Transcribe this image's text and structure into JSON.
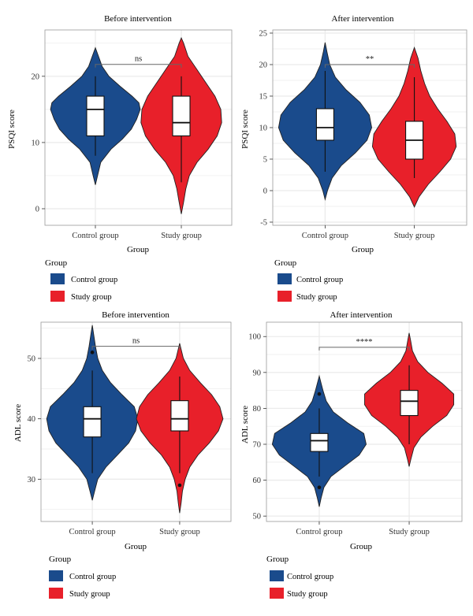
{
  "colors": {
    "control": "#1a4b8c",
    "study": "#e8202a",
    "panel_border": "#9a9a9a",
    "grid": "#ebebeb",
    "outline": "#222222"
  },
  "chart_data": [
    {
      "type": "violin",
      "title": "Before intervention",
      "xlabel": "Group",
      "ylabel": "PSQI score",
      "categories": [
        "Control group",
        "Study group"
      ],
      "ylim": [
        -2.5,
        27
      ],
      "yticks": [
        0,
        10,
        20
      ],
      "significance": "ns",
      "bracket_y": 21.8,
      "legend": {
        "title": "Group",
        "items": [
          "Control group",
          "Study group"
        ]
      },
      "series": [
        {
          "name": "Control group",
          "min": 8,
          "q1": 11,
          "median": 15,
          "q3": 17,
          "max": 20,
          "outliers": [],
          "violin": [
            [
              3.6,
              0
            ],
            [
              5,
              0.05
            ],
            [
              7,
              0.12
            ],
            [
              9,
              0.35
            ],
            [
              10.5,
              0.6
            ],
            [
              12,
              0.8
            ],
            [
              13.5,
              0.92
            ],
            [
              15,
              1.0
            ],
            [
              16,
              0.97
            ],
            [
              17,
              0.82
            ],
            [
              18.5,
              0.55
            ],
            [
              20,
              0.3
            ],
            [
              21.5,
              0.15
            ],
            [
              23,
              0.07
            ],
            [
              24.3,
              0
            ]
          ]
        },
        {
          "name": "Study group",
          "min": 4,
          "q1": 11,
          "median": 13,
          "q3": 17,
          "max": 20,
          "outliers": [],
          "violin": [
            [
              -0.8,
              0
            ],
            [
              1,
              0.05
            ],
            [
              3,
              0.1
            ],
            [
              5,
              0.18
            ],
            [
              7,
              0.35
            ],
            [
              9,
              0.6
            ],
            [
              11,
              0.8
            ],
            [
              13,
              0.9
            ],
            [
              15,
              0.88
            ],
            [
              17,
              0.75
            ],
            [
              19,
              0.55
            ],
            [
              21,
              0.35
            ],
            [
              23,
              0.15
            ],
            [
              25,
              0.05
            ],
            [
              25.8,
              0
            ]
          ]
        }
      ]
    },
    {
      "type": "violin",
      "title": "After intervention",
      "xlabel": "Group",
      "ylabel": "PSQI score",
      "categories": [
        "Control group",
        "Study group"
      ],
      "ylim": [
        -5.5,
        25.5
      ],
      "yticks": [
        -5,
        0,
        5,
        10,
        15,
        20,
        25
      ],
      "significance": "**",
      "bracket_y": 20,
      "legend": {
        "title": "Group",
        "items": [
          "Control group",
          "Study group"
        ]
      },
      "series": [
        {
          "name": "Control group",
          "min": 3,
          "q1": 8,
          "median": 10,
          "q3": 13,
          "max": 19,
          "outliers": [],
          "violin": [
            [
              -1.4,
              0
            ],
            [
              0,
              0.05
            ],
            [
              2,
              0.15
            ],
            [
              4,
              0.35
            ],
            [
              6,
              0.65
            ],
            [
              8,
              0.9
            ],
            [
              10,
              1.0
            ],
            [
              12,
              0.95
            ],
            [
              14,
              0.75
            ],
            [
              16,
              0.45
            ],
            [
              18,
              0.22
            ],
            [
              20,
              0.1
            ],
            [
              22,
              0.04
            ],
            [
              23.5,
              0
            ]
          ]
        },
        {
          "name": "Study group",
          "min": 2,
          "q1": 5,
          "median": 8,
          "q3": 11,
          "max": 18,
          "outliers": [],
          "violin": [
            [
              -2.6,
              0
            ],
            [
              -1,
              0.1
            ],
            [
              1,
              0.3
            ],
            [
              3,
              0.55
            ],
            [
              5,
              0.78
            ],
            [
              7,
              0.9
            ],
            [
              9,
              0.87
            ],
            [
              11,
              0.7
            ],
            [
              13,
              0.5
            ],
            [
              15,
              0.33
            ],
            [
              17,
              0.22
            ],
            [
              19,
              0.14
            ],
            [
              21,
              0.08
            ],
            [
              22.7,
              0
            ]
          ]
        }
      ]
    },
    {
      "type": "violin",
      "title": "Before intervention",
      "xlabel": "Group",
      "ylabel": "ADL score",
      "categories": [
        "Control group",
        "Study group"
      ],
      "ylim": [
        23,
        56
      ],
      "yticks": [
        30,
        40,
        50
      ],
      "significance": "ns",
      "bracket_y": 52,
      "legend": {
        "title": "Group",
        "items": [
          "Control group",
          "Study group"
        ]
      },
      "series": [
        {
          "name": "Control group",
          "min": 31,
          "q1": 37,
          "median": 40,
          "q3": 42,
          "max": 48,
          "outliers": [
            51
          ],
          "violin": [
            [
              26.5,
              0
            ],
            [
              28,
              0.05
            ],
            [
              30,
              0.12
            ],
            [
              32,
              0.3
            ],
            [
              34,
              0.55
            ],
            [
              36,
              0.8
            ],
            [
              38,
              0.95
            ],
            [
              40,
              1.0
            ],
            [
              42,
              0.92
            ],
            [
              44,
              0.65
            ],
            [
              46,
              0.4
            ],
            [
              48,
              0.22
            ],
            [
              50,
              0.12
            ],
            [
              52,
              0.07
            ],
            [
              54,
              0.03
            ],
            [
              55.5,
              0
            ]
          ]
        },
        {
          "name": "Study group",
          "min": 31,
          "q1": 38,
          "median": 40,
          "q3": 43,
          "max": 47,
          "outliers": [
            29
          ],
          "violin": [
            [
              24.4,
              0
            ],
            [
              26,
              0.03
            ],
            [
              28,
              0.06
            ],
            [
              30,
              0.12
            ],
            [
              32,
              0.22
            ],
            [
              34,
              0.4
            ],
            [
              36,
              0.65
            ],
            [
              38,
              0.85
            ],
            [
              40,
              0.95
            ],
            [
              42,
              0.88
            ],
            [
              44,
              0.7
            ],
            [
              46,
              0.45
            ],
            [
              48,
              0.22
            ],
            [
              50,
              0.08
            ],
            [
              52.5,
              0
            ]
          ]
        }
      ]
    },
    {
      "type": "violin",
      "title": "After intervention",
      "xlabel": "Group",
      "ylabel": "ADL score",
      "categories": [
        "Control group",
        "Study group"
      ],
      "ylim": [
        48.5,
        104
      ],
      "yticks": [
        50,
        60,
        70,
        80,
        90,
        100
      ],
      "significance": "****",
      "bracket_y": 97,
      "legend": {
        "title": "Group",
        "items": [
          "Control group",
          "Study group"
        ]
      },
      "series": [
        {
          "name": "Control group",
          "min": 61,
          "q1": 68,
          "median": 71,
          "q3": 73,
          "max": 80,
          "outliers": [
            84,
            58
          ],
          "violin": [
            [
              52.6,
              0
            ],
            [
              55,
              0.04
            ],
            [
              58,
              0.1
            ],
            [
              61,
              0.25
            ],
            [
              64,
              0.55
            ],
            [
              67,
              0.85
            ],
            [
              70,
              1.0
            ],
            [
              73,
              0.95
            ],
            [
              76,
              0.6
            ],
            [
              79,
              0.3
            ],
            [
              82,
              0.15
            ],
            [
              85,
              0.08
            ],
            [
              87,
              0.04
            ],
            [
              89,
              0
            ]
          ]
        },
        {
          "name": "Study group",
          "min": 70,
          "q1": 78,
          "median": 82,
          "q3": 85,
          "max": 92,
          "outliers": [],
          "violin": [
            [
              63.8,
              0
            ],
            [
              66,
              0.04
            ],
            [
              69,
              0.1
            ],
            [
              72,
              0.25
            ],
            [
              75,
              0.5
            ],
            [
              78,
              0.8
            ],
            [
              81,
              0.95
            ],
            [
              84,
              0.95
            ],
            [
              87,
              0.7
            ],
            [
              90,
              0.4
            ],
            [
              93,
              0.18
            ],
            [
              96,
              0.07
            ],
            [
              99,
              0.03
            ],
            [
              101,
              0
            ]
          ]
        }
      ]
    }
  ]
}
